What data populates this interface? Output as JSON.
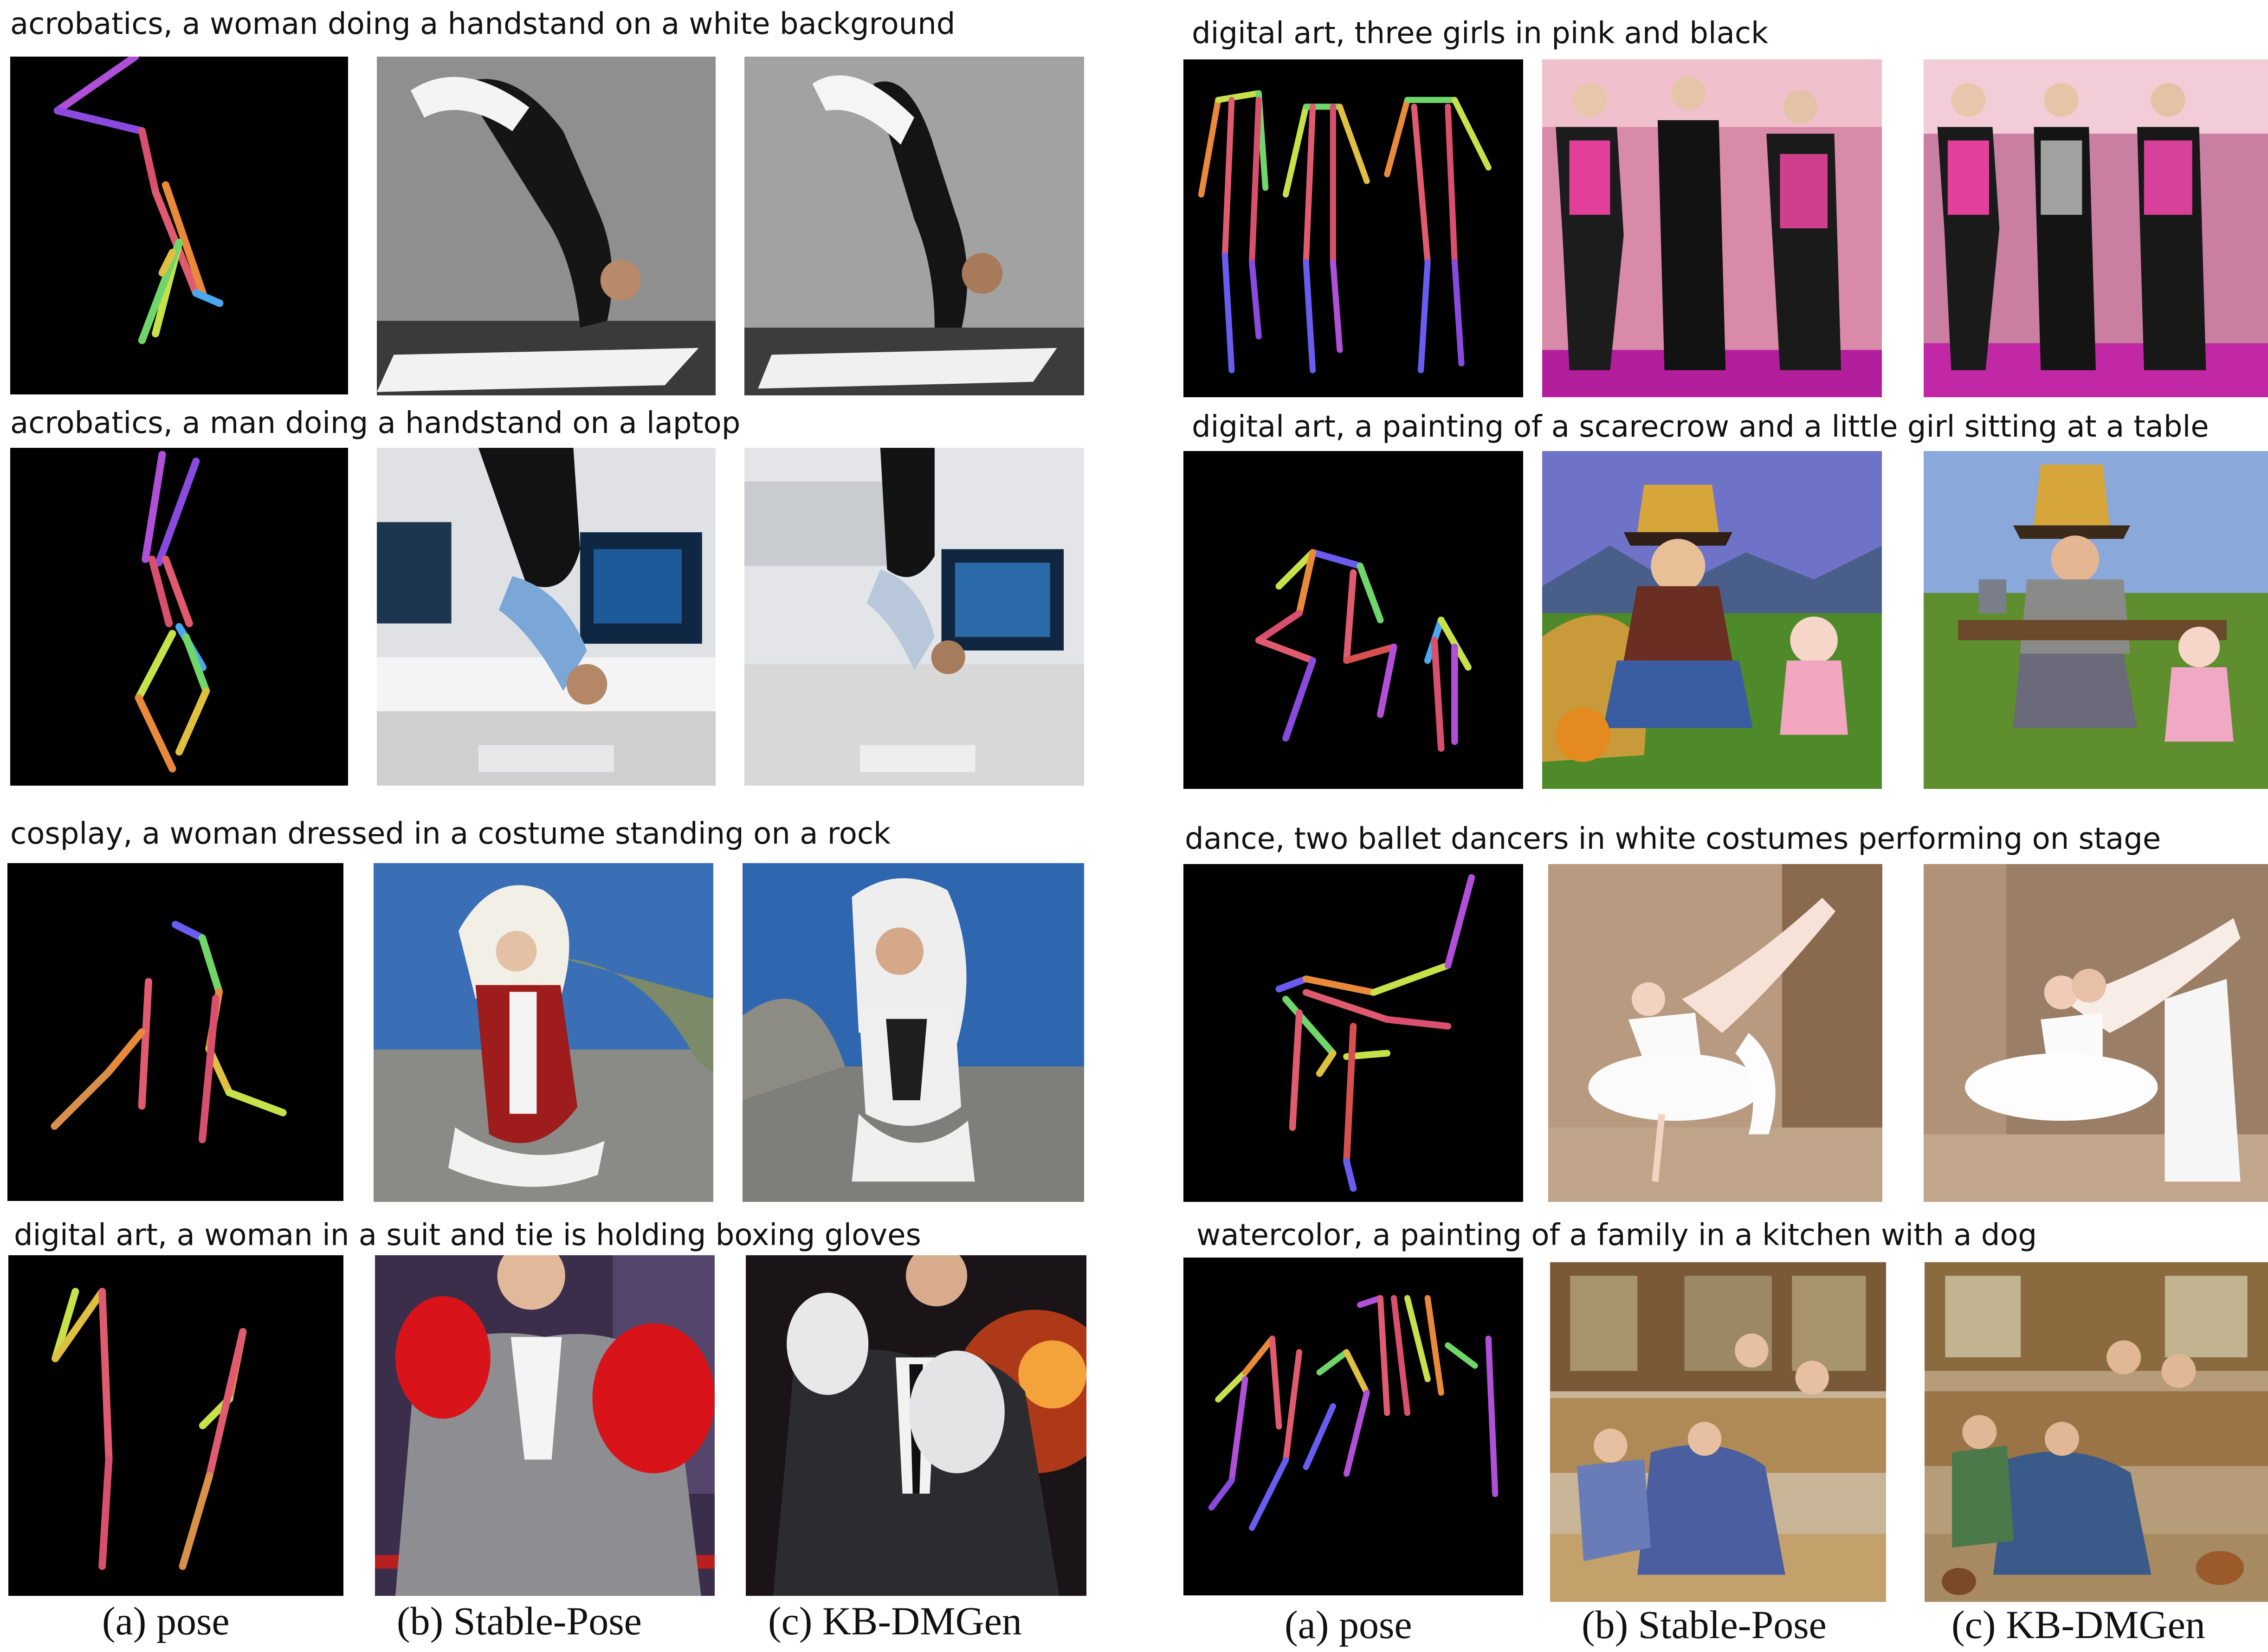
{
  "left_panel": {
    "rows": [
      {
        "caption": "acrobatics, a woman doing a handstand on a white background"
      },
      {
        "caption": "acrobatics, a man doing a handstand on a laptop"
      },
      {
        "caption": "cosplay, a woman dressed in a costume standing on a rock"
      },
      {
        "caption": "digital art, a woman in a suit and tie is holding boxing gloves"
      }
    ],
    "column_labels": [
      "(a) pose",
      "(b) Stable-Pose",
      "(c) KB-DMGen"
    ]
  },
  "right_panel": {
    "rows": [
      {
        "caption": "digital art, three girls in pink and black"
      },
      {
        "caption": "digital art, a painting of a scarecrow and a little girl sitting at a table"
      },
      {
        "caption": "dance, two ballet dancers in white costumes performing on stage"
      },
      {
        "caption": "watercolor, a painting of a family in a kitchen with a dog"
      }
    ],
    "column_labels": [
      "(a) pose",
      "(b) Stable-Pose",
      "(c) KB-DMGen"
    ]
  },
  "palette": {
    "pose_background": "#000000",
    "skeleton_colors": [
      "#b04fd8",
      "#6a5cf0",
      "#e05a70",
      "#e98a3a",
      "#c7e14a",
      "#6fd66a",
      "#4aa8f0",
      "#d64c4c"
    ]
  }
}
